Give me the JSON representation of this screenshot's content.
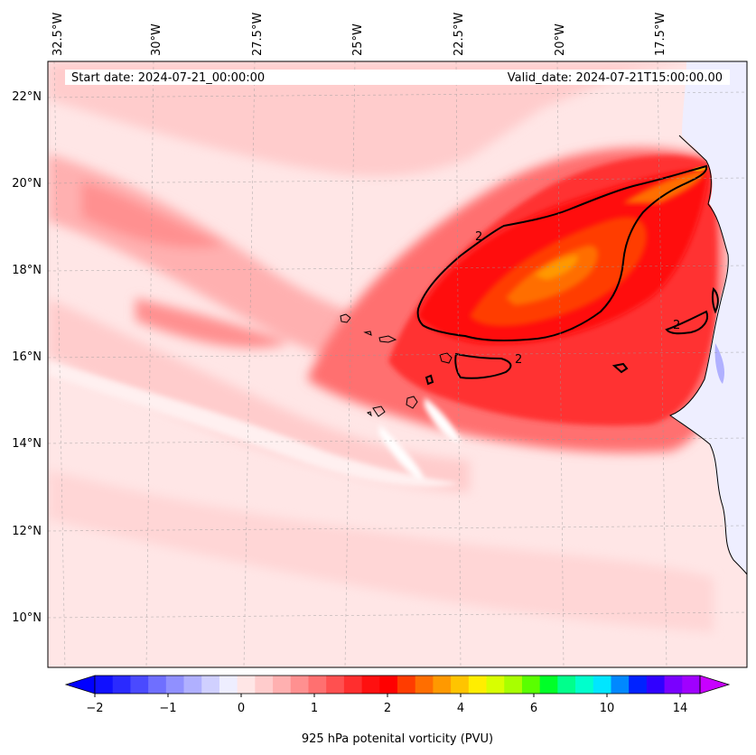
{
  "map": {
    "start_label": "Start date: 2024-07-21_00:00:00",
    "valid_label": "Valid_date: 2024-07-21T15:00:00.00",
    "lon_labels": [
      "32.5°W",
      "30°W",
      "27.5°W",
      "25°W",
      "22.5°W",
      "20°W",
      "17.5°W"
    ],
    "lat_labels": [
      "22°N",
      "20°N",
      "18°N",
      "16°N",
      "14°N",
      "12°N",
      "10°N"
    ],
    "contour_label": "2",
    "colors": {
      "background": "#ffe6e6",
      "land": "#eeeeff",
      "contour": "#000000"
    }
  },
  "colorbar": {
    "title": "925 hPa potenital vorticity (PVU)",
    "tick_labels": [
      "−2",
      "−1",
      "0",
      "1",
      "2",
      "4",
      "6",
      "10",
      "14"
    ],
    "under_color": "#0000ff",
    "over_color": "#c800ff",
    "colors": [
      "#1010ff",
      "#2a2aff",
      "#4a4aff",
      "#6f6fff",
      "#9090ff",
      "#b0b0ff",
      "#d0d0ff",
      "#eeeeff",
      "#ffe6e6",
      "#ffcccc",
      "#ffb0b0",
      "#ff9090",
      "#ff7070",
      "#ff5050",
      "#ff2e2e",
      "#ff1010",
      "#ff0000",
      "#ff3c00",
      "#ff6e00",
      "#ff9900",
      "#ffc400",
      "#ffee00",
      "#d8ff00",
      "#a8ff00",
      "#5aff00",
      "#00ff28",
      "#00ff8c",
      "#00ffcc",
      "#00e6ff",
      "#0088ff",
      "#0022ff",
      "#3000ff",
      "#7a00ff",
      "#a000ff"
    ]
  }
}
